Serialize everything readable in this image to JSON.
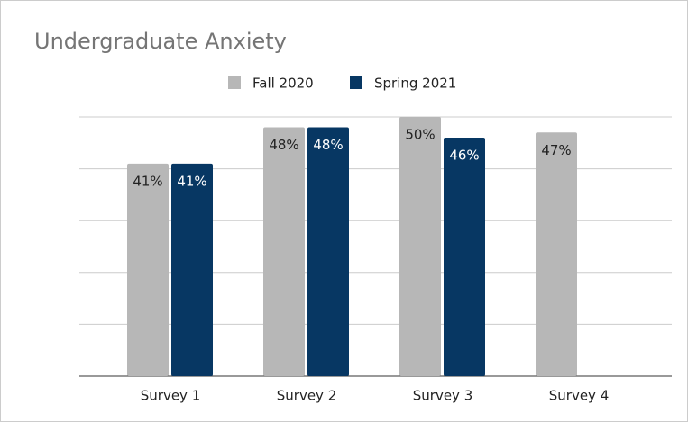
{
  "chart_data": {
    "type": "bar",
    "title": "Undergraduate Anxiety",
    "categories": [
      "Survey 1",
      "Survey 2",
      "Survey 3",
      "Survey 4"
    ],
    "series": [
      {
        "name": "Fall 2020",
        "color": "#b7b7b7",
        "values": [
          41,
          48,
          50,
          47
        ],
        "value_labels": [
          "41%",
          "48%",
          "50%",
          "47%"
        ]
      },
      {
        "name": "Spring 2021",
        "color": "#073763",
        "values": [
          41,
          48,
          46,
          null
        ],
        "value_labels": [
          "41%",
          "48%",
          "46%",
          null
        ]
      }
    ],
    "ylim": [
      0,
      50
    ],
    "yticks": [
      0,
      10,
      20,
      30,
      40,
      50
    ],
    "grid": true,
    "legend": "top"
  }
}
